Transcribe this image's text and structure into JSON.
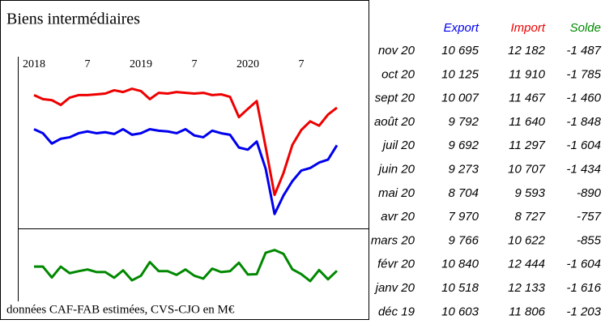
{
  "chart_data": {
    "type": "line",
    "title": "Biens intermédiaires",
    "note": "données CAF-FAB estimées, CVS-CJO en M€",
    "categories": [
      "2018",
      null,
      null,
      null,
      null,
      null,
      "7",
      null,
      null,
      null,
      null,
      null,
      "2019",
      null,
      null,
      null,
      null,
      null,
      "7",
      null,
      null,
      null,
      null,
      null,
      "2020",
      null,
      null,
      null,
      null,
      null,
      "7",
      null,
      null,
      null,
      null
    ],
    "ylim": [
      7400,
      14200
    ],
    "y2lim": [
      -2500,
      0
    ],
    "series": [
      {
        "name": "Export",
        "color": "#0000ee",
        "values": [
          11330,
          11170,
          10760,
          10950,
          11010,
          11170,
          11240,
          11170,
          11210,
          11140,
          11330,
          11110,
          11170,
          11330,
          11270,
          11240,
          11170,
          11330,
          11080,
          11010,
          11270,
          11170,
          11110,
          10603,
          10518,
          10840,
          9766,
          7970,
          8704,
          9273,
          9692,
          9792,
          10007,
          10125,
          10695
        ]
      },
      {
        "name": "Import",
        "color": "#ee0000",
        "values": [
          12680,
          12520,
          12480,
          12290,
          12580,
          12680,
          12680,
          12710,
          12740,
          12870,
          12800,
          12930,
          12840,
          12520,
          12770,
          12740,
          12800,
          12770,
          12740,
          12770,
          12680,
          12710,
          12610,
          11806,
          12133,
          12444,
          10622,
          8727,
          9593,
          10707,
          11297,
          11640,
          11467,
          11910,
          12182
        ]
      },
      {
        "name": "Solde",
        "color": "#008800",
        "axis": "y2",
        "values": [
          -1340,
          -1340,
          -1720,
          -1340,
          -1570,
          -1500,
          -1440,
          -1530,
          -1530,
          -1730,
          -1470,
          -1820,
          -1660,
          -1180,
          -1500,
          -1500,
          -1630,
          -1440,
          -1660,
          -1760,
          -1410,
          -1530,
          -1500,
          -1203,
          -1616,
          -1604,
          -855,
          -757,
          -890,
          -1434,
          -1604,
          -1848,
          -1460,
          -1785,
          -1487
        ]
      }
    ]
  },
  "table": {
    "rows": [
      [
        "nov 20",
        "10 695",
        "12 182",
        "-1 487"
      ],
      [
        "oct 20",
        "10 125",
        "11 910",
        "-1 785"
      ],
      [
        "sept 20",
        "10 007",
        "11 467",
        "-1 460"
      ],
      [
        "août 20",
        "9 792",
        "11 640",
        "-1 848"
      ],
      [
        "juil 20",
        "9 692",
        "11 297",
        "-1 604"
      ],
      [
        "juin 20",
        "9 273",
        "10 707",
        "-1 434"
      ],
      [
        "mai 20",
        "8 704",
        "9 593",
        "-890"
      ],
      [
        "avr 20",
        "7 970",
        "8 727",
        "-757"
      ],
      [
        "mars 20",
        "9 766",
        "10 622",
        "-855"
      ],
      [
        "févr 20",
        "10 840",
        "12 444",
        "-1 604"
      ],
      [
        "janv 20",
        "10 518",
        "12 133",
        "-1 616"
      ],
      [
        "déc 19",
        "10 603",
        "11 806",
        "-1 203"
      ]
    ]
  }
}
